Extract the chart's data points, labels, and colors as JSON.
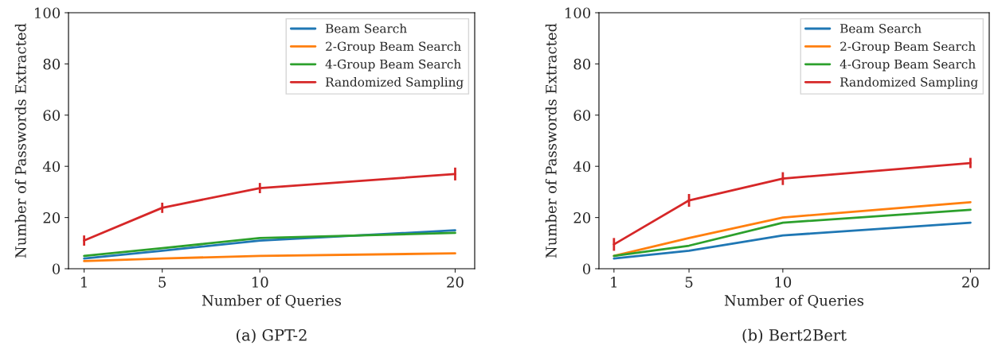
{
  "chart_data": [
    {
      "type": "line",
      "xlabel": "Number of Queries",
      "ylabel": "Number of Passwords Extracted",
      "x": [
        1,
        5,
        10,
        20
      ],
      "xlim": [
        0.2,
        21
      ],
      "xticks": [
        1,
        5,
        10,
        20
      ],
      "ylim": [
        0,
        100
      ],
      "yticks": [
        0,
        20,
        40,
        60,
        80,
        100
      ],
      "legend": "top right",
      "grid": false,
      "annotations": [
        "(a) GPT-2"
      ],
      "series": [
        {
          "name": "Beam Search",
          "color": "#1f77b4",
          "values": [
            4,
            7,
            11,
            15
          ]
        },
        {
          "name": "2-Group Beam Search",
          "color": "#ff7f0e",
          "values": [
            3,
            4,
            5,
            6
          ]
        },
        {
          "name": "4-Group Beam Search",
          "color": "#2ca02c",
          "values": [
            5,
            8,
            12,
            14
          ]
        },
        {
          "name": "Randomized Sampling",
          "color": "#d62728",
          "values": [
            11,
            23.8,
            31.5,
            37
          ],
          "errors": [
            2,
            2,
            2,
            2.5
          ]
        }
      ]
    },
    {
      "type": "line",
      "xlabel": "Number of Queries",
      "ylabel": "Number of Passwords Extracted",
      "x": [
        1,
        5,
        10,
        20
      ],
      "xlim": [
        0.2,
        21
      ],
      "xticks": [
        1,
        5,
        10,
        20
      ],
      "ylim": [
        0,
        100
      ],
      "yticks": [
        0,
        20,
        40,
        60,
        80,
        100
      ],
      "legend": "top right",
      "grid": false,
      "annotations": [
        "(b) Bert2Bert"
      ],
      "series": [
        {
          "name": "Beam Search",
          "color": "#1f77b4",
          "values": [
            4,
            7,
            13,
            18
          ]
        },
        {
          "name": "2-Group Beam Search",
          "color": "#ff7f0e",
          "values": [
            5,
            12,
            20,
            26
          ]
        },
        {
          "name": "4-Group Beam Search",
          "color": "#2ca02c",
          "values": [
            5,
            9,
            18,
            23
          ]
        },
        {
          "name": "Randomized Sampling",
          "color": "#d62728",
          "values": [
            9.5,
            26.7,
            35.2,
            41.3
          ],
          "errors": [
            2.5,
            2.5,
            2.5,
            2
          ]
        }
      ]
    }
  ]
}
